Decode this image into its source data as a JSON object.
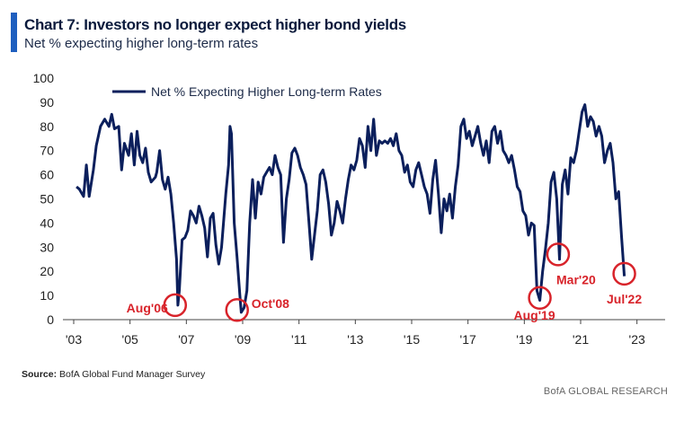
{
  "header": {
    "title": "Chart 7: Investors no longer expect higher bond yields",
    "subtitle": "Net % expecting higher long-term rates"
  },
  "footer": {
    "source_label": "Source:",
    "source_text": "BofA Global Fund Manager Survey",
    "credit": "BofA GLOBAL RESEARCH"
  },
  "colors": {
    "line": "#0b1f5c",
    "accent": "#1f5fbf",
    "annotation": "#d8232a"
  },
  "chart_data": {
    "type": "line",
    "ylim": [
      0,
      100
    ],
    "yticks": [
      0,
      10,
      20,
      30,
      40,
      50,
      60,
      70,
      80,
      90,
      100
    ],
    "xlim": [
      2003.0,
      2024.0
    ],
    "xticks": [
      {
        "label": "'03",
        "year": 2003
      },
      {
        "label": "'05",
        "year": 2005
      },
      {
        "label": "'07",
        "year": 2007
      },
      {
        "label": "'09",
        "year": 2009
      },
      {
        "label": "'11",
        "year": 2011
      },
      {
        "label": "'13",
        "year": 2013
      },
      {
        "label": "'15",
        "year": 2015
      },
      {
        "label": "'17",
        "year": 2017
      },
      {
        "label": "'19",
        "year": 2019
      },
      {
        "label": "'21",
        "year": 2021
      },
      {
        "label": "'23",
        "year": 2023
      }
    ],
    "legend": {
      "position": "top-left"
    },
    "series": [
      {
        "name": "Net % Expecting Higher Long-term Rates",
        "points": [
          [
            2003.1,
            55
          ],
          [
            2003.2,
            54
          ],
          [
            2003.35,
            51
          ],
          [
            2003.45,
            64
          ],
          [
            2003.55,
            51
          ],
          [
            2003.7,
            62
          ],
          [
            2003.8,
            72
          ],
          [
            2003.95,
            80
          ],
          [
            2004.1,
            83
          ],
          [
            2004.25,
            80
          ],
          [
            2004.35,
            85
          ],
          [
            2004.45,
            79
          ],
          [
            2004.6,
            80
          ],
          [
            2004.7,
            62
          ],
          [
            2004.8,
            73
          ],
          [
            2004.95,
            68
          ],
          [
            2005.05,
            77
          ],
          [
            2005.15,
            64
          ],
          [
            2005.25,
            78
          ],
          [
            2005.35,
            68
          ],
          [
            2005.45,
            65
          ],
          [
            2005.55,
            71
          ],
          [
            2005.65,
            61
          ],
          [
            2005.75,
            57
          ],
          [
            2005.9,
            59
          ],
          [
            2005.95,
            61
          ],
          [
            2006.05,
            70
          ],
          [
            2006.15,
            58
          ],
          [
            2006.25,
            54
          ],
          [
            2006.35,
            59
          ],
          [
            2006.45,
            52
          ],
          [
            2006.55,
            40
          ],
          [
            2006.65,
            25
          ],
          [
            2006.7,
            6
          ],
          [
            2006.75,
            12
          ],
          [
            2006.85,
            33
          ],
          [
            2006.95,
            34
          ],
          [
            2007.05,
            37
          ],
          [
            2007.15,
            45
          ],
          [
            2007.25,
            43
          ],
          [
            2007.35,
            40
          ],
          [
            2007.45,
            47
          ],
          [
            2007.55,
            43
          ],
          [
            2007.65,
            38
          ],
          [
            2007.75,
            26
          ],
          [
            2007.85,
            42
          ],
          [
            2007.95,
            44
          ],
          [
            2008.05,
            31
          ],
          [
            2008.15,
            23
          ],
          [
            2008.25,
            30
          ],
          [
            2008.4,
            52
          ],
          [
            2008.5,
            64
          ],
          [
            2008.55,
            80
          ],
          [
            2008.6,
            77
          ],
          [
            2008.7,
            40
          ],
          [
            2008.8,
            26
          ],
          [
            2008.9,
            10
          ],
          [
            2008.95,
            3
          ],
          [
            2009.05,
            5
          ],
          [
            2009.15,
            12
          ],
          [
            2009.25,
            40
          ],
          [
            2009.35,
            58
          ],
          [
            2009.45,
            42
          ],
          [
            2009.55,
            57
          ],
          [
            2009.65,
            52
          ],
          [
            2009.75,
            59
          ],
          [
            2009.85,
            61
          ],
          [
            2009.95,
            63
          ],
          [
            2010.05,
            60
          ],
          [
            2010.15,
            68
          ],
          [
            2010.25,
            63
          ],
          [
            2010.35,
            60
          ],
          [
            2010.45,
            32
          ],
          [
            2010.55,
            50
          ],
          [
            2010.65,
            58
          ],
          [
            2010.75,
            69
          ],
          [
            2010.85,
            71
          ],
          [
            2010.95,
            68
          ],
          [
            2011.05,
            63
          ],
          [
            2011.15,
            60
          ],
          [
            2011.25,
            56
          ],
          [
            2011.35,
            41
          ],
          [
            2011.45,
            25
          ],
          [
            2011.55,
            35
          ],
          [
            2011.65,
            45
          ],
          [
            2011.75,
            60
          ],
          [
            2011.85,
            62
          ],
          [
            2011.95,
            57
          ],
          [
            2012.05,
            48
          ],
          [
            2012.15,
            35
          ],
          [
            2012.25,
            40
          ],
          [
            2012.35,
            49
          ],
          [
            2012.45,
            45
          ],
          [
            2012.55,
            40
          ],
          [
            2012.65,
            50
          ],
          [
            2012.75,
            58
          ],
          [
            2012.85,
            64
          ],
          [
            2012.95,
            62
          ],
          [
            2013.05,
            66
          ],
          [
            2013.15,
            75
          ],
          [
            2013.25,
            72
          ],
          [
            2013.35,
            63
          ],
          [
            2013.45,
            80
          ],
          [
            2013.55,
            70
          ],
          [
            2013.65,
            83
          ],
          [
            2013.75,
            68
          ],
          [
            2013.85,
            74
          ],
          [
            2013.95,
            73
          ],
          [
            2014.05,
            74
          ],
          [
            2014.15,
            73
          ],
          [
            2014.25,
            75
          ],
          [
            2014.35,
            72
          ],
          [
            2014.45,
            77
          ],
          [
            2014.55,
            70
          ],
          [
            2014.65,
            68
          ],
          [
            2014.75,
            61
          ],
          [
            2014.85,
            64
          ],
          [
            2014.95,
            57
          ],
          [
            2015.05,
            55
          ],
          [
            2015.15,
            62
          ],
          [
            2015.25,
            65
          ],
          [
            2015.35,
            60
          ],
          [
            2015.45,
            55
          ],
          [
            2015.55,
            52
          ],
          [
            2015.65,
            44
          ],
          [
            2015.75,
            58
          ],
          [
            2015.85,
            66
          ],
          [
            2015.95,
            52
          ],
          [
            2016.05,
            36
          ],
          [
            2016.15,
            50
          ],
          [
            2016.25,
            45
          ],
          [
            2016.35,
            52
          ],
          [
            2016.45,
            42
          ],
          [
            2016.55,
            55
          ],
          [
            2016.65,
            64
          ],
          [
            2016.75,
            80
          ],
          [
            2016.85,
            83
          ],
          [
            2016.95,
            75
          ],
          [
            2017.05,
            78
          ],
          [
            2017.15,
            72
          ],
          [
            2017.25,
            76
          ],
          [
            2017.35,
            80
          ],
          [
            2017.45,
            73
          ],
          [
            2017.55,
            68
          ],
          [
            2017.65,
            74
          ],
          [
            2017.75,
            65
          ],
          [
            2017.85,
            78
          ],
          [
            2017.95,
            80
          ],
          [
            2018.05,
            73
          ],
          [
            2018.15,
            78
          ],
          [
            2018.25,
            70
          ],
          [
            2018.35,
            68
          ],
          [
            2018.45,
            65
          ],
          [
            2018.55,
            68
          ],
          [
            2018.65,
            62
          ],
          [
            2018.75,
            55
          ],
          [
            2018.85,
            53
          ],
          [
            2018.95,
            45
          ],
          [
            2019.05,
            43
          ],
          [
            2019.15,
            35
          ],
          [
            2019.25,
            40
          ],
          [
            2019.35,
            39
          ],
          [
            2019.45,
            12
          ],
          [
            2019.55,
            8
          ],
          [
            2019.65,
            20
          ],
          [
            2019.75,
            29
          ],
          [
            2019.85,
            40
          ],
          [
            2019.95,
            57
          ],
          [
            2020.05,
            61
          ],
          [
            2020.15,
            50
          ],
          [
            2020.25,
            25
          ],
          [
            2020.35,
            56
          ],
          [
            2020.45,
            62
          ],
          [
            2020.55,
            52
          ],
          [
            2020.65,
            67
          ],
          [
            2020.75,
            65
          ],
          [
            2020.85,
            70
          ],
          [
            2020.95,
            78
          ],
          [
            2021.05,
            86
          ],
          [
            2021.15,
            89
          ],
          [
            2021.25,
            80
          ],
          [
            2021.35,
            84
          ],
          [
            2021.45,
            82
          ],
          [
            2021.55,
            76
          ],
          [
            2021.65,
            80
          ],
          [
            2021.75,
            76
          ],
          [
            2021.85,
            65
          ],
          [
            2021.95,
            70
          ],
          [
            2022.05,
            73
          ],
          [
            2022.15,
            65
          ],
          [
            2022.25,
            50
          ],
          [
            2022.35,
            53
          ],
          [
            2022.45,
            35
          ],
          [
            2022.55,
            18
          ]
        ]
      }
    ],
    "annotations": [
      {
        "label": "Aug'06",
        "x": 2006.6,
        "y": 6
      },
      {
        "label": "Oct'08",
        "x": 2008.8,
        "y": 4
      },
      {
        "label": "Aug'19",
        "x": 2019.55,
        "y": 9
      },
      {
        "label": "Mar'20",
        "x": 2020.2,
        "y": 27
      },
      {
        "label": "Jul'22",
        "x": 2022.55,
        "y": 19
      }
    ]
  }
}
